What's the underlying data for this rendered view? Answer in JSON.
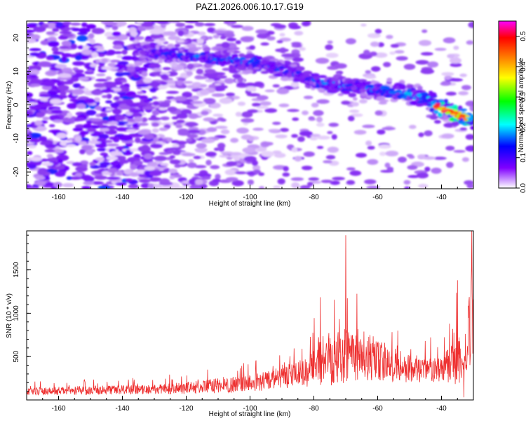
{
  "chart_data": [
    {
      "type": "heatmap",
      "title": "PAZ1.2026.006.10.17.G19",
      "xlabel": "Height of straight line (km)",
      "ylabel": "Frequency (Hz)",
      "xlim": [
        -170,
        -30
      ],
      "ylim": [
        -25,
        25
      ],
      "xticks": [
        -160,
        -140,
        -120,
        -100,
        -80,
        -60,
        -40
      ],
      "yticks": [
        -20,
        -10,
        0,
        10,
        20
      ],
      "colorbar": {
        "label": "Normalized spectral amplitude",
        "range": [
          0,
          0.55
        ],
        "ticks": [
          "0.0",
          "0.1",
          "0.2",
          "0.3",
          "0.4",
          "0.5"
        ],
        "colors": [
          "#ffffff",
          "#8000ff",
          "#0000ff",
          "#00ffff",
          "#00ff00",
          "#ffff00",
          "#ff8000",
          "#ff0000",
          "#ff00ff"
        ]
      },
      "ridge": {
        "x": [
          -135,
          -125,
          -115,
          -105,
          -95,
          -85,
          -75,
          -65,
          -55,
          -45,
          -40,
          -35,
          -30
        ],
        "freq": [
          16,
          15,
          14.5,
          13.5,
          12,
          9,
          6,
          5,
          4,
          2,
          -1,
          -3,
          -5
        ],
        "peak_amplitude": [
          0.15,
          0.2,
          0.22,
          0.25,
          0.22,
          0.2,
          0.25,
          0.22,
          0.25,
          0.28,
          0.5,
          0.55,
          0.4
        ]
      }
    },
    {
      "type": "line",
      "xlabel": "Height of straight line (km)",
      "ylabel": "SNR (10 * v/v)",
      "xlim": [
        -170,
        -30
      ],
      "ylim": [
        0,
        1950
      ],
      "xticks": [
        -160,
        -140,
        -120,
        -100,
        -80,
        -60,
        -40
      ],
      "yticks": [
        500,
        1000,
        1500
      ],
      "line_color": "#ee3030",
      "envelope": {
        "x": [
          -170,
          -150,
          -130,
          -120,
          -100,
          -90,
          -82,
          -78,
          -72,
          -70,
          -66,
          -60,
          -50,
          -40,
          -35,
          -33,
          -31,
          -30
        ],
        "base": [
          80,
          90,
          100,
          110,
          150,
          200,
          250,
          350,
          400,
          420,
          400,
          350,
          300,
          280,
          300,
          400,
          600,
          900
        ],
        "amp": [
          80,
          90,
          100,
          130,
          180,
          220,
          300,
          550,
          700,
          650,
          600,
          450,
          300,
          250,
          700,
          150,
          1200,
          900
        ]
      },
      "peaks": [
        {
          "x": -70,
          "y": 1900
        },
        {
          "x": -35,
          "y": 1380
        },
        {
          "x": -30.5,
          "y": 1950
        },
        {
          "x": -33,
          "y": 30
        }
      ]
    }
  ]
}
